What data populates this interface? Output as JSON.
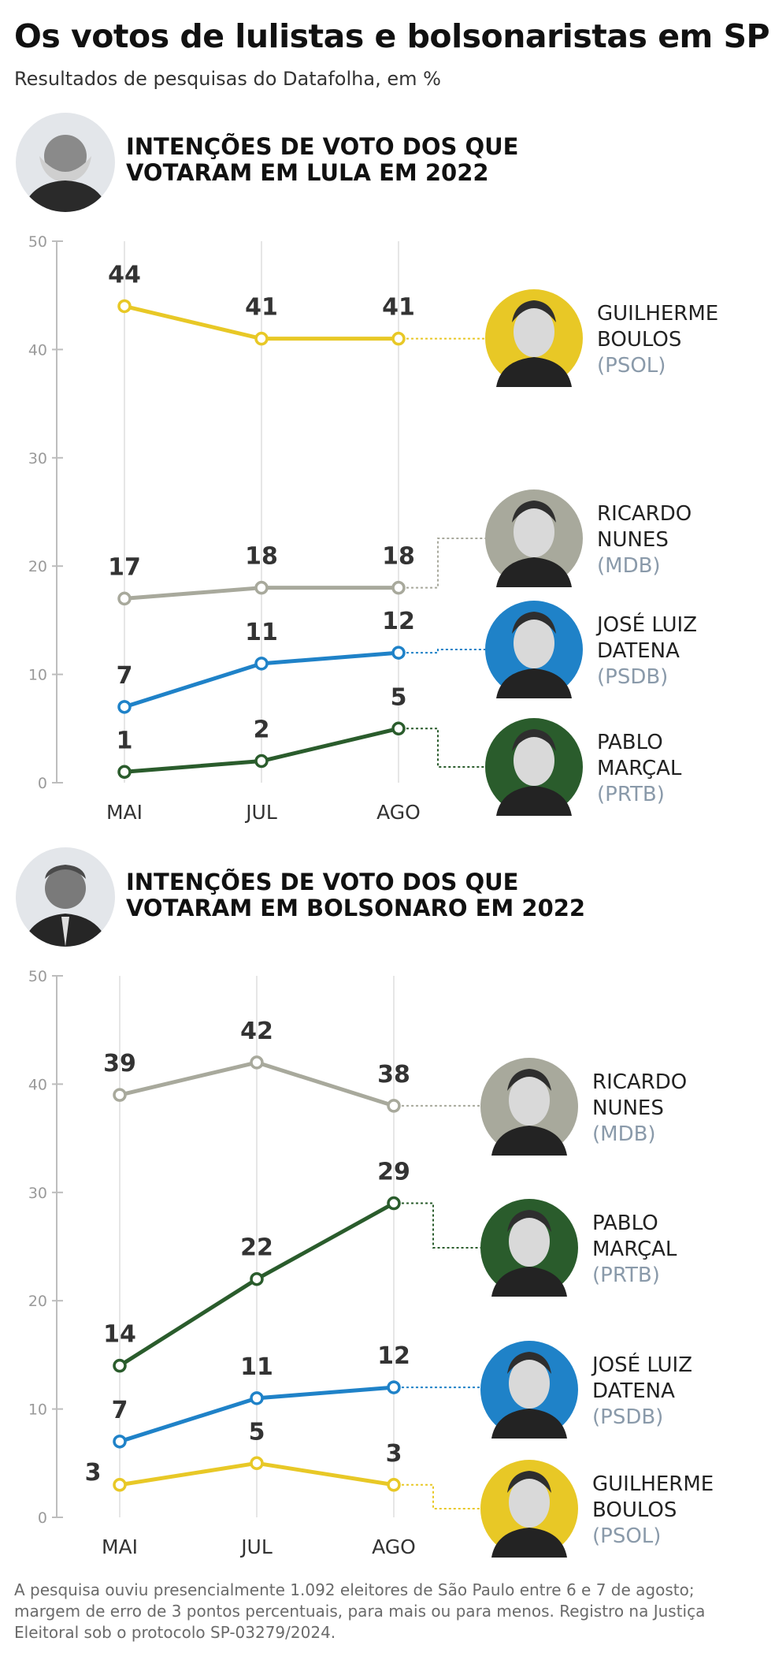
{
  "header": {
    "title": "Os votos de lulistas e bolsonaristas em SP",
    "subtitle": "Resultados de pesquisas do Datafolha, em %"
  },
  "colors": {
    "boulos": "#e8c826",
    "nunes": "#a8a99c",
    "datena": "#1f82c8",
    "marcal": "#2a5c2c",
    "axis": "#c8c8c8",
    "avatar_bg": "#e3e6ea"
  },
  "chart_data": [
    {
      "type": "line",
      "title_lines": [
        "INTENÇÕES DE VOTO DOS QUE",
        "VOTARAM EM LULA EM 2022"
      ],
      "categories": [
        "MAI",
        "JUL",
        "AGO"
      ],
      "ylim": [
        0,
        50
      ],
      "yticks": [
        "0",
        "10",
        "20",
        "30",
        "40",
        "50"
      ],
      "series": [
        {
          "name_lines": [
            "GUILHERME",
            "BOULOS"
          ],
          "party": "(PSOL)",
          "color": "#e8c826",
          "values": [
            44,
            41,
            41
          ],
          "labels": [
            "44",
            "41",
            "41"
          ]
        },
        {
          "name_lines": [
            "RICARDO",
            "NUNES"
          ],
          "party": "(MDB)",
          "color": "#a8a99c",
          "values": [
            17,
            18,
            18
          ],
          "labels": [
            "17",
            "18",
            "18"
          ]
        },
        {
          "name_lines": [
            "JOSÉ LUIZ",
            "DATENA"
          ],
          "party": "(PSDB)",
          "color": "#1f82c8",
          "values": [
            7,
            11,
            12
          ],
          "labels": [
            "7",
            "11",
            "12"
          ]
        },
        {
          "name_lines": [
            "PABLO",
            "MARÇAL"
          ],
          "party": "(PRTB)",
          "color": "#2a5c2c",
          "values": [
            1,
            2,
            5
          ],
          "labels": [
            "1",
            "2",
            "5"
          ]
        }
      ]
    },
    {
      "type": "line",
      "title_lines": [
        "INTENÇÕES DE VOTO DOS QUE",
        "VOTARAM EM BOLSONARO EM 2022"
      ],
      "categories": [
        "MAI",
        "JUL",
        "AGO"
      ],
      "ylim": [
        0,
        50
      ],
      "yticks": [
        "0",
        "10",
        "20",
        "30",
        "40",
        "50"
      ],
      "series": [
        {
          "name_lines": [
            "RICARDO",
            "NUNES"
          ],
          "party": "(MDB)",
          "color": "#a8a99c",
          "values": [
            39,
            42,
            38
          ],
          "labels": [
            "39",
            "42",
            "38"
          ]
        },
        {
          "name_lines": [
            "PABLO",
            "MARÇAL"
          ],
          "party": "(PRTB)",
          "color": "#2a5c2c",
          "values": [
            14,
            22,
            29
          ],
          "labels": [
            "14",
            "22",
            "29"
          ]
        },
        {
          "name_lines": [
            "JOSÉ LUIZ",
            "DATENA"
          ],
          "party": "(PSDB)",
          "color": "#1f82c8",
          "values": [
            7,
            11,
            12
          ],
          "labels": [
            "7",
            "11",
            "12"
          ]
        },
        {
          "name_lines": [
            "GUILHERME",
            "BOULOS"
          ],
          "party": "(PSOL)",
          "color": "#e8c826",
          "values": [
            3,
            5,
            3
          ],
          "labels": [
            "3",
            "5",
            "3"
          ]
        }
      ]
    }
  ],
  "footnote_lines": [
    "A pesquisa ouviu presencialmente 1.092 eleitores de São Paulo entre 6 e 7 de agosto;",
    "margem de erro de 3 pontos percentuais, para mais ou para menos. Registro na Justiça",
    "Eleitoral sob o protocolo SP-03279/2024."
  ]
}
